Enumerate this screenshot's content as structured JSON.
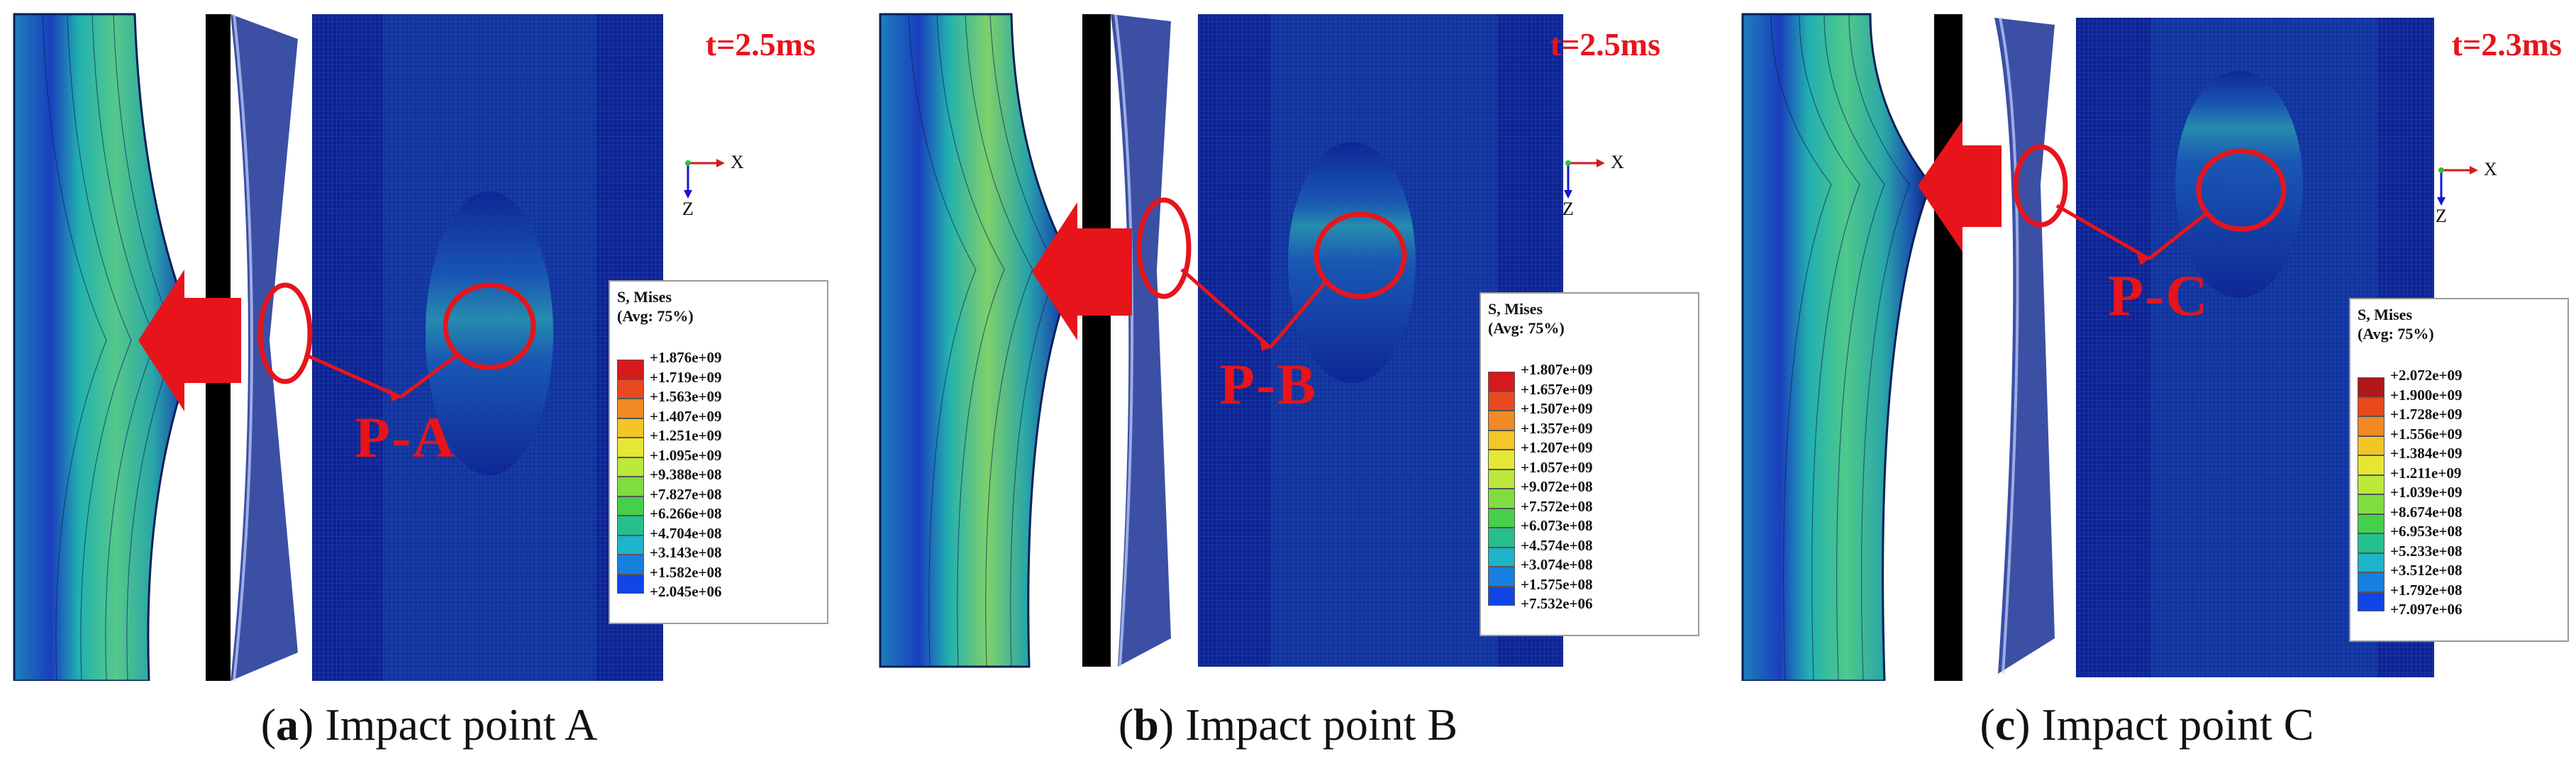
{
  "panels": [
    {
      "id": "a",
      "time": "t=2.5ms",
      "pointer": "P-A",
      "legend": {
        "title": "S, Mises",
        "avg": "(Avg: 75%)",
        "ticks": [
          "+1.876e+09",
          "+1.719e+09",
          "+1.563e+09",
          "+1.407e+09",
          "+1.251e+09",
          "+1.095e+09",
          "+9.388e+08",
          "+7.827e+08",
          "+6.266e+08",
          "+4.704e+08",
          "+3.143e+08",
          "+1.582e+08",
          "+2.045e+06"
        ]
      },
      "axes": {
        "x": "X",
        "z": "Z"
      },
      "caption": {
        "open": "(",
        "letter": "a",
        "text": ") Impact point A"
      }
    },
    {
      "id": "b",
      "time": "t=2.5ms",
      "pointer": "P-B",
      "legend": {
        "title": "S, Mises",
        "avg": "(Avg: 75%)",
        "ticks": [
          "+1.807e+09",
          "+1.657e+09",
          "+1.507e+09",
          "+1.357e+09",
          "+1.207e+09",
          "+1.057e+09",
          "+9.072e+08",
          "+7.572e+08",
          "+6.073e+08",
          "+4.574e+08",
          "+3.074e+08",
          "+1.575e+08",
          "+7.532e+06"
        ]
      },
      "axes": {
        "x": "X",
        "z": "Z"
      },
      "caption": {
        "open": "(",
        "letter": "b",
        "text": ") Impact point B"
      }
    },
    {
      "id": "c",
      "time": "t=2.3ms",
      "pointer": "P-C",
      "legend": {
        "title": "S, Mises",
        "avg": "(Avg: 75%)",
        "ticks": [
          "+2.072e+09",
          "+1.900e+09",
          "+1.728e+09",
          "+1.556e+09",
          "+1.384e+09",
          "+1.211e+09",
          "+1.039e+09",
          "+8.674e+08",
          "+6.953e+08",
          "+5.233e+08",
          "+3.512e+08",
          "+1.792e+08",
          "+7.097e+06"
        ]
      },
      "axes": {
        "x": "X",
        "z": "Z"
      },
      "caption": {
        "open": "(",
        "letter": "c",
        "text": ") Impact point C"
      }
    }
  ],
  "colors": {
    "annotation_red": "#e8141b",
    "mesh_dark": "#0b1d8c",
    "mesh_mid": "#17a9b0",
    "mesh_hot": "#b7d64a",
    "legend_scale": [
      "#d7191c",
      "#e8491f",
      "#f08a24",
      "#f3c528",
      "#e6e733",
      "#bce93a",
      "#7fdc41",
      "#45cf4b",
      "#25c08e",
      "#1eb4c9",
      "#1780df",
      "#1145e6",
      "#1414d8"
    ]
  }
}
